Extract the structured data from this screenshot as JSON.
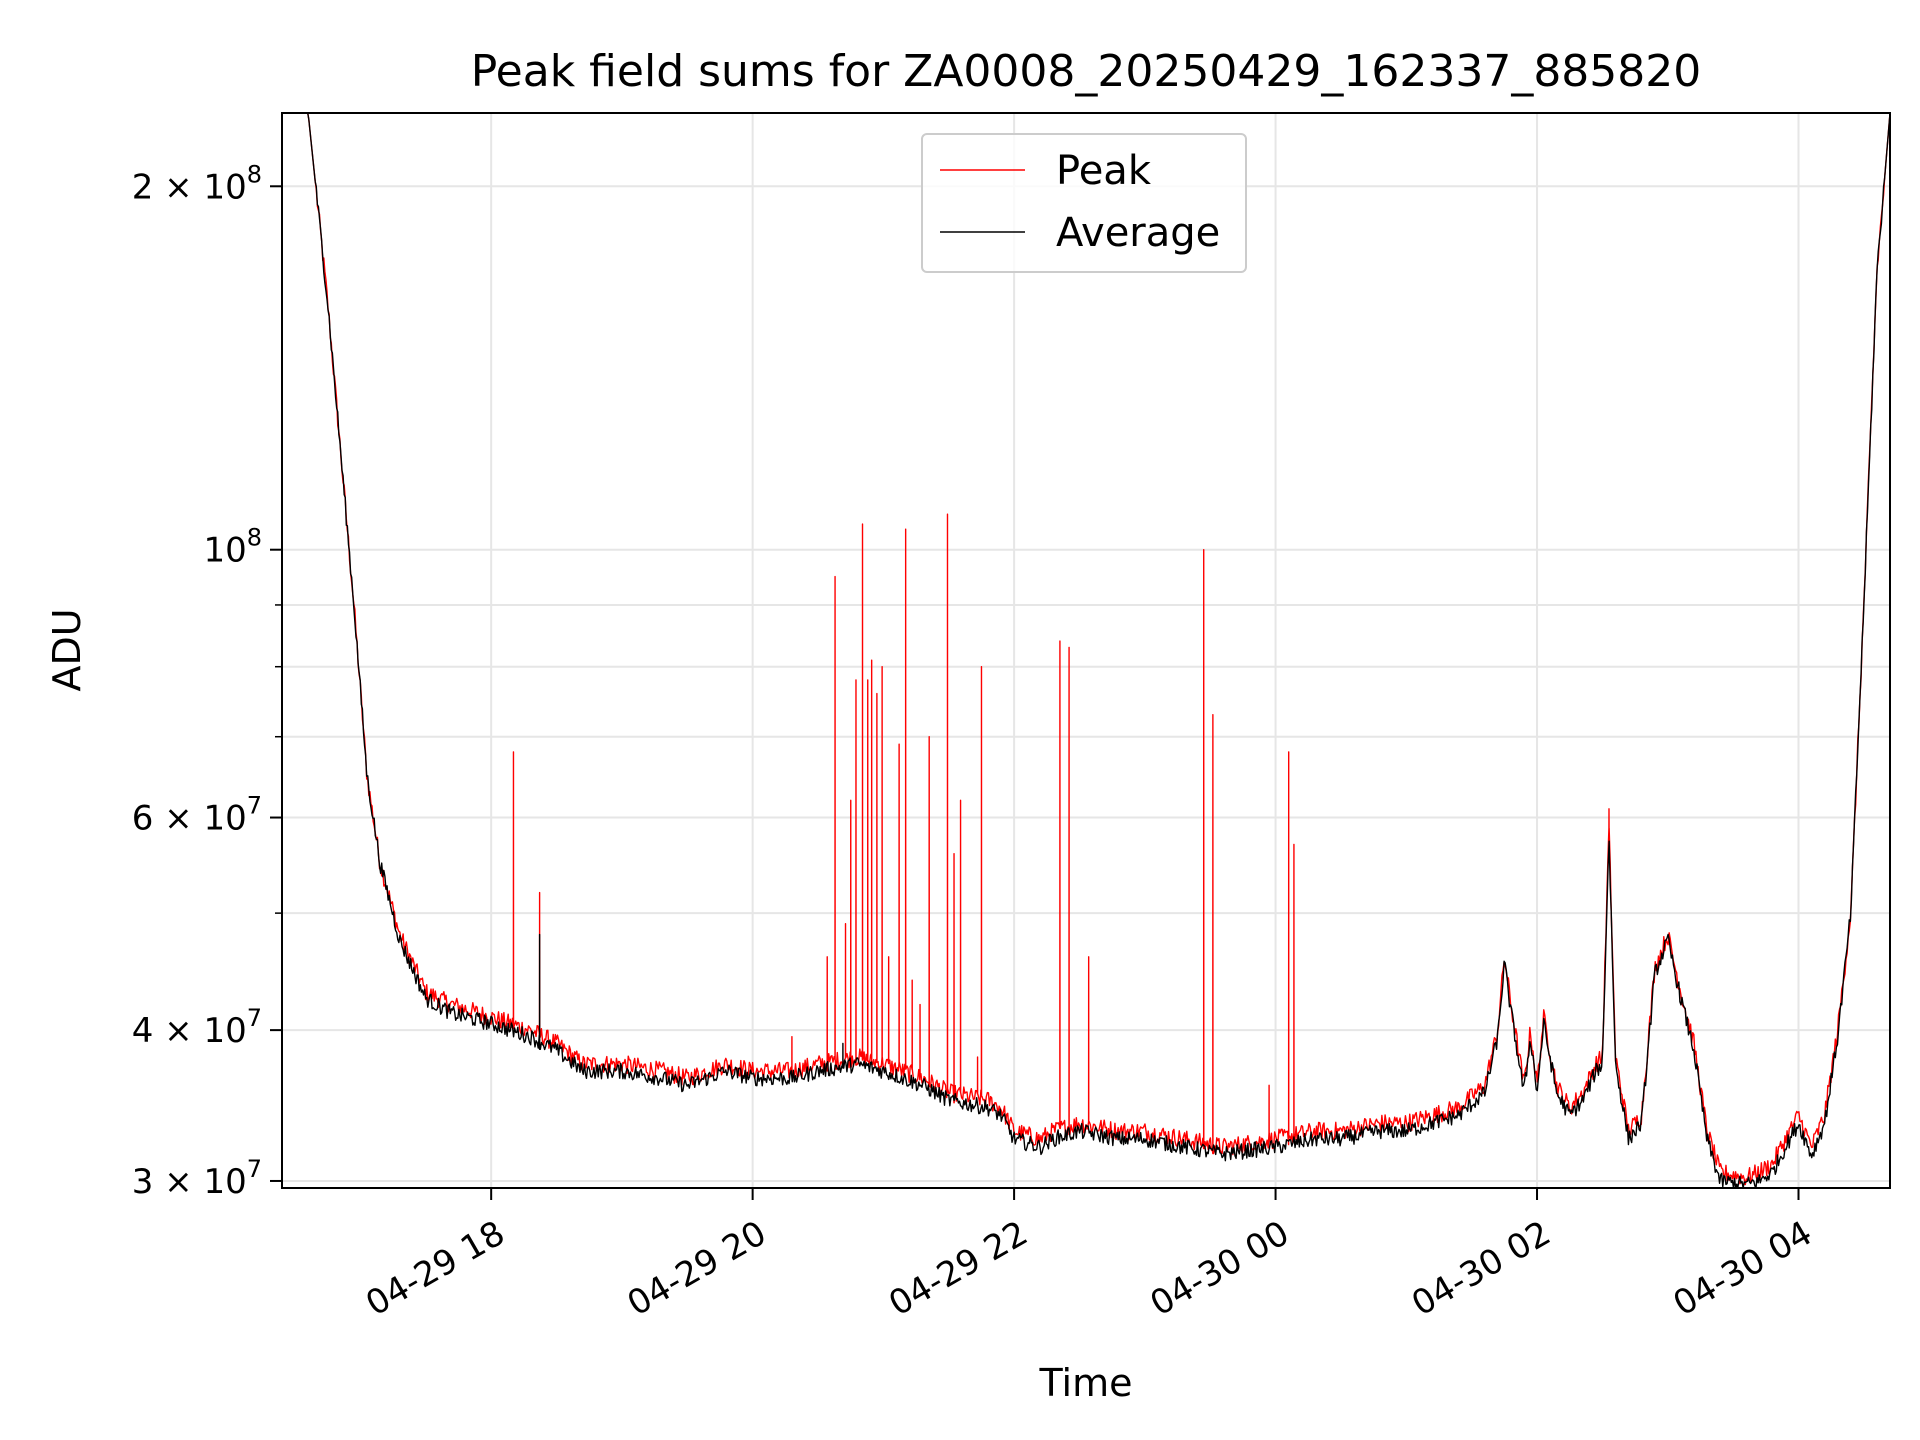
{
  "chart_data": {
    "type": "line",
    "title": "Peak field sums for ZA0008_20250429_162337_885820",
    "xlabel": "Time",
    "ylabel": "ADU",
    "yscale": "log",
    "xlim_hours": [
      16.4,
      28.7
    ],
    "ylim": [
      29600000,
      230000000
    ],
    "grid": true,
    "legend_position": "top-center",
    "x_ticks": [
      {
        "hours": 18,
        "label": "04-29 18"
      },
      {
        "hours": 20,
        "label": "04-29 20"
      },
      {
        "hours": 22,
        "label": "04-29 22"
      },
      {
        "hours": 24,
        "label": "04-30 00"
      },
      {
        "hours": 26,
        "label": "04-30 02"
      },
      {
        "hours": 28,
        "label": "04-30 04"
      }
    ],
    "y_major_ticks": [
      {
        "value": 30000000,
        "base": "3 × 10",
        "exp": "7"
      },
      {
        "value": 40000000,
        "base": "4 × 10",
        "exp": "7"
      },
      {
        "value": 60000000,
        "base": "6 × 10",
        "exp": "7"
      },
      {
        "value": 100000000,
        "base": "10",
        "exp": "8"
      },
      {
        "value": 200000000,
        "base": "2 × 10",
        "exp": "8"
      }
    ],
    "y_minor_ticks": [
      50000000,
      70000000,
      80000000,
      90000000
    ],
    "series": [
      {
        "name": "Peak",
        "color": "#ff0000",
        "baseline": [
          [
            16.4,
            230000000
          ],
          [
            16.6,
            230000000
          ],
          [
            16.75,
            160000000
          ],
          [
            16.85,
            120000000
          ],
          [
            16.95,
            90000000
          ],
          [
            17.05,
            65000000
          ],
          [
            17.15,
            55000000
          ],
          [
            17.3,
            48000000
          ],
          [
            17.5,
            43000000
          ],
          [
            17.7,
            42000000
          ],
          [
            18.0,
            41000000
          ],
          [
            18.3,
            40000000
          ],
          [
            18.5,
            39000000
          ],
          [
            18.7,
            37500000
          ],
          [
            19.0,
            37500000
          ],
          [
            19.3,
            37000000
          ],
          [
            19.5,
            36500000
          ],
          [
            19.8,
            37500000
          ],
          [
            20.0,
            37000000
          ],
          [
            20.3,
            37000000
          ],
          [
            20.5,
            37500000
          ],
          [
            20.8,
            38000000
          ],
          [
            21.0,
            37500000
          ],
          [
            21.3,
            36500000
          ],
          [
            21.5,
            35500000
          ],
          [
            21.8,
            35000000
          ],
          [
            21.9,
            34500000
          ],
          [
            22.0,
            33000000
          ],
          [
            22.2,
            32500000
          ],
          [
            22.3,
            33000000
          ],
          [
            22.5,
            33500000
          ],
          [
            22.8,
            33000000
          ],
          [
            23.0,
            33000000
          ],
          [
            23.3,
            32500000
          ],
          [
            23.6,
            32000000
          ],
          [
            24.0,
            32500000
          ],
          [
            24.3,
            33000000
          ],
          [
            24.5,
            33000000
          ],
          [
            24.8,
            33500000
          ],
          [
            25.0,
            33500000
          ],
          [
            25.2,
            34000000
          ],
          [
            25.4,
            34500000
          ],
          [
            25.6,
            36000000
          ],
          [
            25.7,
            40000000
          ],
          [
            25.75,
            46000000
          ],
          [
            25.8,
            42000000
          ],
          [
            25.9,
            36000000
          ],
          [
            25.95,
            40000000
          ],
          [
            26.0,
            36000000
          ],
          [
            26.05,
            41000000
          ],
          [
            26.15,
            36000000
          ],
          [
            26.25,
            34500000
          ],
          [
            26.35,
            35500000
          ],
          [
            26.45,
            37500000
          ],
          [
            26.5,
            38000000
          ],
          [
            26.55,
            59000000
          ],
          [
            26.6,
            38000000
          ],
          [
            26.7,
            33000000
          ],
          [
            26.8,
            34000000
          ],
          [
            26.9,
            45000000
          ],
          [
            27.0,
            48000000
          ],
          [
            27.1,
            43000000
          ],
          [
            27.2,
            39000000
          ],
          [
            27.3,
            33000000
          ],
          [
            27.4,
            30500000
          ],
          [
            27.6,
            30200000
          ],
          [
            27.7,
            30500000
          ],
          [
            27.8,
            31000000
          ],
          [
            27.9,
            32500000
          ],
          [
            28.0,
            34000000
          ],
          [
            28.1,
            32000000
          ],
          [
            28.2,
            34000000
          ],
          [
            28.3,
            40000000
          ],
          [
            28.4,
            50000000
          ],
          [
            28.5,
            90000000
          ],
          [
            28.6,
            170000000
          ],
          [
            28.7,
            230000000
          ]
        ],
        "spikes": [
          [
            18.17,
            68000000
          ],
          [
            18.37,
            52000000
          ],
          [
            20.3,
            39500000
          ],
          [
            20.57,
            46000000
          ],
          [
            20.63,
            95000000
          ],
          [
            20.71,
            49000000
          ],
          [
            20.75,
            62000000
          ],
          [
            20.79,
            78000000
          ],
          [
            20.84,
            105000000
          ],
          [
            20.88,
            78000000
          ],
          [
            20.91,
            81000000
          ],
          [
            20.95,
            76000000
          ],
          [
            20.99,
            80000000
          ],
          [
            21.04,
            46000000
          ],
          [
            21.12,
            69000000
          ],
          [
            21.17,
            104000000
          ],
          [
            21.22,
            44000000
          ],
          [
            21.28,
            42000000
          ],
          [
            21.35,
            70000000
          ],
          [
            21.49,
            107000000
          ],
          [
            21.54,
            56000000
          ],
          [
            21.59,
            62000000
          ],
          [
            21.72,
            38000000
          ],
          [
            21.75,
            80000000
          ],
          [
            22.35,
            84000000
          ],
          [
            22.42,
            83000000
          ],
          [
            22.57,
            46000000
          ],
          [
            23.45,
            100000000
          ],
          [
            23.52,
            73000000
          ],
          [
            23.95,
            36000000
          ],
          [
            24.1,
            68000000
          ],
          [
            24.14,
            57000000
          ],
          [
            26.55,
            61000000
          ]
        ]
      },
      {
        "name": "Average",
        "color": "#000000",
        "baseline": [
          [
            16.4,
            230000000
          ],
          [
            16.6,
            230000000
          ],
          [
            16.75,
            160000000
          ],
          [
            16.85,
            120000000
          ],
          [
            16.95,
            90000000
          ],
          [
            17.05,
            65000000
          ],
          [
            17.15,
            55000000
          ],
          [
            17.3,
            47500000
          ],
          [
            17.5,
            42500000
          ],
          [
            17.7,
            41300000
          ],
          [
            18.0,
            40500000
          ],
          [
            18.3,
            39500000
          ],
          [
            18.5,
            38500000
          ],
          [
            18.7,
            37000000
          ],
          [
            19.0,
            37000000
          ],
          [
            19.3,
            36500000
          ],
          [
            19.5,
            36000000
          ],
          [
            19.8,
            37000000
          ],
          [
            20.0,
            36500000
          ],
          [
            20.3,
            36500000
          ],
          [
            20.5,
            37000000
          ],
          [
            20.8,
            37500000
          ],
          [
            21.0,
            37000000
          ],
          [
            21.3,
            36000000
          ],
          [
            21.5,
            35000000
          ],
          [
            21.8,
            34500000
          ],
          [
            21.9,
            34000000
          ],
          [
            22.0,
            32500000
          ],
          [
            22.2,
            32000000
          ],
          [
            22.3,
            32500000
          ],
          [
            22.5,
            33000000
          ],
          [
            22.8,
            32500000
          ],
          [
            23.0,
            32500000
          ],
          [
            23.3,
            32000000
          ],
          [
            23.6,
            31600000
          ],
          [
            24.0,
            32000000
          ],
          [
            24.3,
            32500000
          ],
          [
            24.5,
            32500000
          ],
          [
            24.8,
            33000000
          ],
          [
            25.0,
            33000000
          ],
          [
            25.2,
            33500000
          ],
          [
            25.4,
            34000000
          ],
          [
            25.6,
            35500000
          ],
          [
            25.7,
            39500000
          ],
          [
            25.75,
            45500000
          ],
          [
            25.8,
            41500000
          ],
          [
            25.9,
            35500000
          ],
          [
            25.95,
            39500000
          ],
          [
            26.0,
            35500000
          ],
          [
            26.05,
            40500000
          ],
          [
            26.15,
            35500000
          ],
          [
            26.25,
            34000000
          ],
          [
            26.35,
            35000000
          ],
          [
            26.45,
            37000000
          ],
          [
            26.5,
            37500000
          ],
          [
            26.55,
            58000000
          ],
          [
            26.6,
            37500000
          ],
          [
            26.7,
            32500000
          ],
          [
            26.8,
            33500000
          ],
          [
            26.9,
            44500000
          ],
          [
            27.0,
            47500000
          ],
          [
            27.1,
            42500000
          ],
          [
            27.2,
            38500000
          ],
          [
            27.3,
            32500000
          ],
          [
            27.4,
            30000000
          ],
          [
            27.6,
            29800000
          ],
          [
            27.7,
            30000000
          ],
          [
            27.8,
            30500000
          ],
          [
            27.9,
            32000000
          ],
          [
            28.0,
            33500000
          ],
          [
            28.1,
            31500000
          ],
          [
            28.2,
            33500000
          ],
          [
            28.3,
            39500000
          ],
          [
            28.4,
            50000000
          ],
          [
            28.5,
            90000000
          ],
          [
            28.6,
            170000000
          ],
          [
            28.7,
            230000000
          ]
        ],
        "spikes": [
          [
            18.37,
            48000000
          ],
          [
            20.69,
            39000000
          ]
        ]
      }
    ]
  }
}
